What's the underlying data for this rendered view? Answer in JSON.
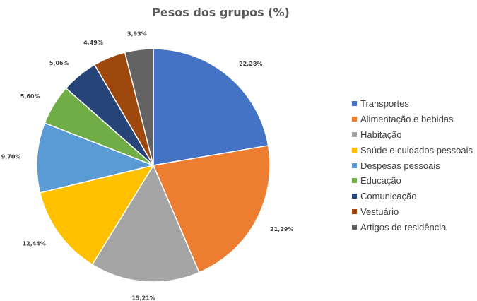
{
  "chart_data": {
    "type": "pie",
    "title": "Pesos dos grupos (%)",
    "categories": [
      "Transportes",
      "Alimentação e bebidas",
      "Habitação",
      "Saúde e cuidados pessoais",
      "Despesas pessoais",
      "Educação",
      "Comunicação",
      "Vestuário",
      "Artigos de residência"
    ],
    "values": [
      22.28,
      21.29,
      15.21,
      12.44,
      9.7,
      5.6,
      5.06,
      4.49,
      3.93
    ],
    "labels": [
      "22,28%",
      "21,29%",
      "15,21%",
      "12,44%",
      "9,70%",
      "5,60%",
      "5,06%",
      "4,49%",
      "3,93%"
    ],
    "colors": [
      "#4472C4",
      "#ED7D31",
      "#A5A5A5",
      "#FFC000",
      "#5B9BD5",
      "#70AD47",
      "#264478",
      "#9E480E",
      "#636363"
    ],
    "legend_position": "right",
    "start_angle_deg": 0,
    "direction": "clockwise"
  }
}
